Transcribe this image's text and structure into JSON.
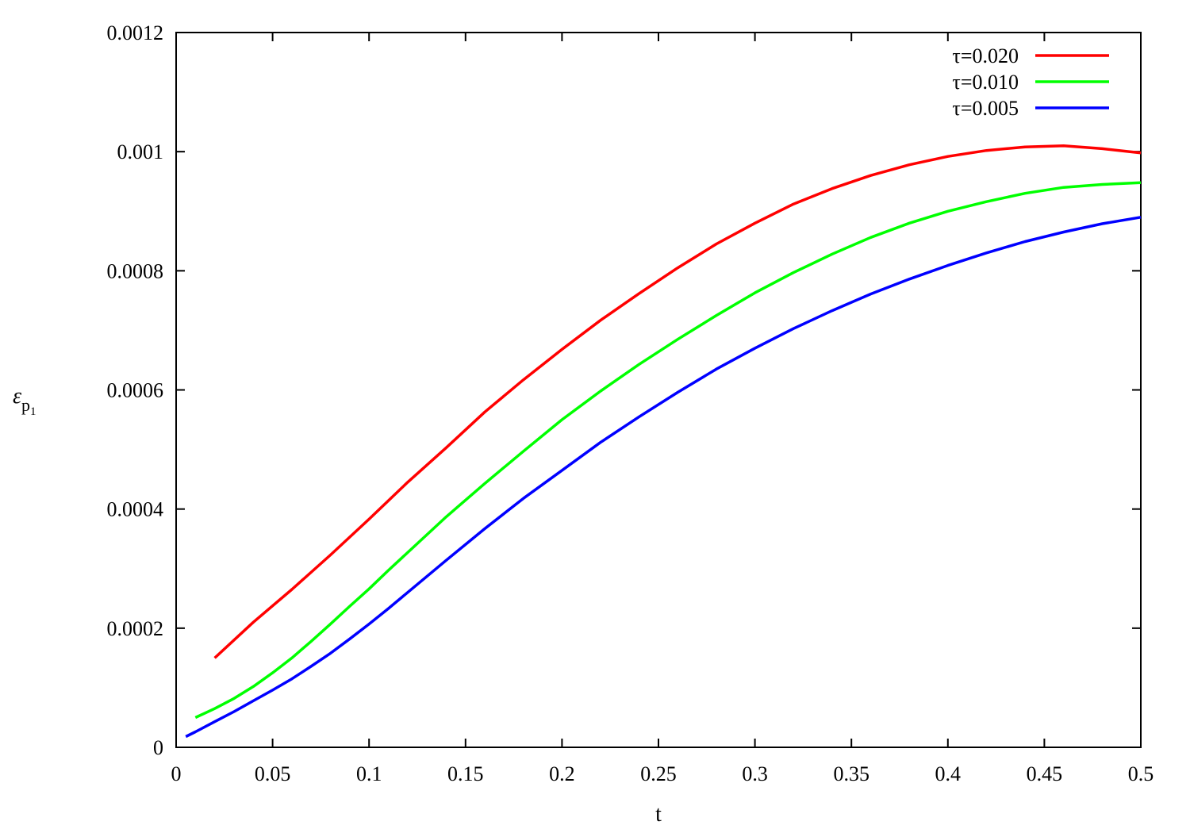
{
  "chart_data": {
    "type": "line",
    "title": "",
    "xlabel": "t",
    "ylabel_main": "ε",
    "ylabel_sub": "p",
    "ylabel_subsub": "1",
    "xlim": [
      0,
      0.5
    ],
    "ylim": [
      0,
      0.0012
    ],
    "x_ticks": [
      0,
      0.05,
      0.1,
      0.15,
      0.2,
      0.25,
      0.3,
      0.35,
      0.4,
      0.45,
      0.5
    ],
    "x_tick_labels": [
      "0",
      "0.05",
      "0.1",
      "0.15",
      "0.2",
      "0.25",
      "0.3",
      "0.35",
      "0.4",
      "0.45",
      "0.5"
    ],
    "y_ticks": [
      0,
      0.0002,
      0.0004,
      0.0006,
      0.0008,
      0.001,
      0.0012
    ],
    "y_tick_labels": [
      "0",
      "0.0002",
      "0.0004",
      "0.0006",
      "0.0008",
      "0.001",
      "0.0012"
    ],
    "grid": false,
    "legend_position": "top-right",
    "series": [
      {
        "name": "τ=0.020",
        "color": "#ff0000",
        "x": [
          0.02,
          0.04,
          0.06,
          0.08,
          0.1,
          0.12,
          0.14,
          0.16,
          0.18,
          0.2,
          0.22,
          0.24,
          0.26,
          0.28,
          0.3,
          0.32,
          0.34,
          0.36,
          0.38,
          0.4,
          0.42,
          0.44,
          0.46,
          0.48,
          0.5
        ],
        "y": [
          0.00015,
          0.00021,
          0.000265,
          0.000323,
          0.000383,
          0.000445,
          0.000503,
          0.000563,
          0.000617,
          0.000668,
          0.000717,
          0.000762,
          0.000805,
          0.000845,
          0.00088,
          0.000912,
          0.000938,
          0.00096,
          0.000978,
          0.000992,
          0.001002,
          0.001008,
          0.00101,
          0.001005,
          0.000998
        ]
      },
      {
        "name": "τ=0.010",
        "color": "#00ff00",
        "x": [
          0.01,
          0.02,
          0.03,
          0.04,
          0.05,
          0.06,
          0.07,
          0.08,
          0.09,
          0.1,
          0.11,
          0.12,
          0.14,
          0.16,
          0.18,
          0.2,
          0.22,
          0.24,
          0.26,
          0.28,
          0.3,
          0.32,
          0.34,
          0.36,
          0.38,
          0.4,
          0.42,
          0.44,
          0.46,
          0.48,
          0.5
        ],
        "y": [
          5e-05,
          6.5e-05,
          8.2e-05,
          0.000102,
          0.000125,
          0.00015,
          0.000178,
          0.000207,
          0.000237,
          0.000266,
          0.000297,
          0.000327,
          0.000387,
          0.000443,
          0.000497,
          0.00055,
          0.000598,
          0.000643,
          0.000685,
          0.000725,
          0.000763,
          0.000797,
          0.000828,
          0.000856,
          0.00088,
          0.0009,
          0.000916,
          0.00093,
          0.00094,
          0.000945,
          0.000948
        ]
      },
      {
        "name": "τ=0.005",
        "color": "#0000ff",
        "x": [
          0.005,
          0.01,
          0.02,
          0.03,
          0.04,
          0.05,
          0.06,
          0.07,
          0.08,
          0.09,
          0.1,
          0.11,
          0.12,
          0.14,
          0.16,
          0.18,
          0.2,
          0.22,
          0.24,
          0.26,
          0.28,
          0.3,
          0.32,
          0.34,
          0.36,
          0.38,
          0.4,
          0.42,
          0.44,
          0.46,
          0.48,
          0.5
        ],
        "y": [
          1.8e-05,
          2.6e-05,
          4.3e-05,
          6e-05,
          7.8e-05,
          9.6e-05,
          0.000115,
          0.000136,
          0.000158,
          0.000182,
          0.000207,
          0.000233,
          0.00026,
          0.000314,
          0.000367,
          0.000418,
          0.000465,
          0.000512,
          0.000555,
          0.000596,
          0.000635,
          0.00067,
          0.000703,
          0.000733,
          0.000761,
          0.000786,
          0.000809,
          0.00083,
          0.000849,
          0.000865,
          0.000879,
          0.00089
        ]
      }
    ]
  }
}
